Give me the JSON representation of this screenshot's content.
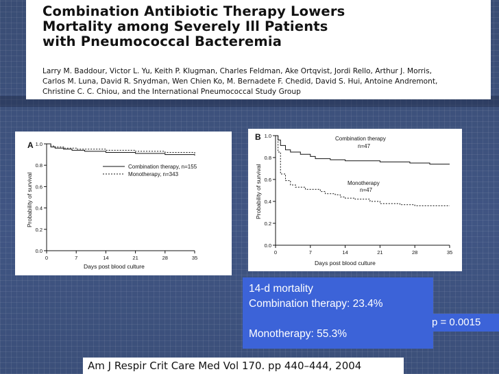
{
  "paper": {
    "title": "Combination Antibiotic Therapy Lowers\nMortality among Severely Ill Patients\nwith Pneumococcal Bacteremia",
    "authors": "Larry M. Baddour, Victor L. Yu, Keith P. Klugman, Charles Feldman, Ake Ortqvist, Jordi Rello, Arthur J. Morris,\nCarlos M. Luna, David R. Snydman, Wen Chien Ko, M. Bernadete F. Chedid, David S. Hui, Antoine Andremont,\nChristine C. C. Chiou, and the International Pneumococcal Study Group"
  },
  "chart_data": [
    {
      "type": "line",
      "panel_label": "A",
      "xlabel": "Days post blood culture",
      "ylabel": "Probability of survival",
      "xlim": [
        0,
        35
      ],
      "ylim": [
        0,
        1.0
      ],
      "x_ticks": [
        "0",
        "7",
        "14",
        "21",
        "28",
        "35"
      ],
      "y_ticks": [
        "0.0",
        "0.2",
        "0.4",
        "0.6",
        "0.8",
        "1.0"
      ],
      "legend": [
        "Combination therapy,  n=155",
        "Monotherapy, n=343"
      ],
      "series": [
        {
          "name": "Combination therapy,  n=155",
          "style": "solid",
          "points": [
            [
              0,
              1.0
            ],
            [
              1,
              0.97
            ],
            [
              2,
              0.96
            ],
            [
              4,
              0.95
            ],
            [
              6,
              0.94
            ],
            [
              9,
              0.93
            ],
            [
              14,
              0.92
            ],
            [
              21,
              0.91
            ],
            [
              28,
              0.9
            ],
            [
              35,
              0.89
            ]
          ]
        },
        {
          "name": "Monotherapy, n=343",
          "style": "dashed",
          "points": [
            [
              0,
              1.0
            ],
            [
              1,
              0.98
            ],
            [
              2,
              0.97
            ],
            [
              4,
              0.96
            ],
            [
              7,
              0.95
            ],
            [
              14,
              0.94
            ],
            [
              21,
              0.93
            ],
            [
              28,
              0.92
            ],
            [
              35,
              0.91
            ]
          ]
        }
      ]
    },
    {
      "type": "line",
      "panel_label": "B",
      "xlabel": "Days post blood culture",
      "ylabel": "Probability of survival",
      "xlim": [
        0,
        35
      ],
      "ylim": [
        0,
        1.0
      ],
      "x_ticks": [
        "0",
        "7",
        "14",
        "21",
        "28",
        "35"
      ],
      "y_ticks": [
        "0.0",
        "0.2",
        "0.4",
        "0.6",
        "0.8",
        "1.0"
      ],
      "annotations": [
        {
          "lines": [
            "Combination therapy",
            "n=47"
          ],
          "at": [
            25,
            0.97
          ]
        },
        {
          "lines": [
            "Monotherapy",
            "n=47"
          ],
          "at": [
            25.5,
            0.59
          ]
        }
      ],
      "series": [
        {
          "name": "Combination therapy",
          "style": "solid",
          "points": [
            [
              0,
              1.0
            ],
            [
              0.5,
              0.96
            ],
            [
              1,
              0.91
            ],
            [
              2,
              0.87
            ],
            [
              3,
              0.85
            ],
            [
              5,
              0.83
            ],
            [
              7,
              0.81
            ],
            [
              8,
              0.79
            ],
            [
              11,
              0.78
            ],
            [
              14,
              0.77
            ],
            [
              21,
              0.76
            ],
            [
              27,
              0.75
            ],
            [
              31,
              0.74
            ],
            [
              35,
              0.74
            ]
          ]
        },
        {
          "name": "Monotherapy",
          "style": "dashed",
          "points": [
            [
              0,
              1.0
            ],
            [
              0.5,
              0.85
            ],
            [
              1,
              0.65
            ],
            [
              2,
              0.59
            ],
            [
              3,
              0.55
            ],
            [
              4,
              0.53
            ],
            [
              6,
              0.51
            ],
            [
              9,
              0.49
            ],
            [
              10,
              0.47
            ],
            [
              12,
              0.46
            ],
            [
              13,
              0.44
            ],
            [
              14,
              0.43
            ],
            [
              16,
              0.42
            ],
            [
              19,
              0.4
            ],
            [
              21,
              0.38
            ],
            [
              25,
              0.37
            ],
            [
              28,
              0.36
            ],
            [
              35,
              0.36
            ]
          ]
        }
      ]
    }
  ],
  "stats": {
    "heading": "14-d mortality",
    "combination": "Combination therapy: 23.4%",
    "monotherapy": "Monotherapy: 55.3%",
    "p_value": "p = 0.0015"
  },
  "citation": "Am J Respir Crit Care Med   Vol 170. pp 440–444, 2004"
}
